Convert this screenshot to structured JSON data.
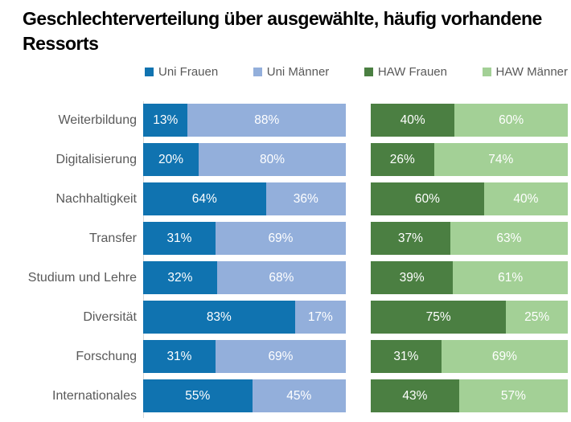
{
  "title": "Geschlechterverteilung über ausgewählte, häufig vorhandene Ressorts",
  "colors": {
    "uni_frauen": "#1073b0",
    "uni_maenner": "#93afdb",
    "haw_frauen": "#4b7f42",
    "haw_maenner": "#a3d096",
    "label_gray": "#595959",
    "axis_line": "#d9d9d9",
    "value_text": "#ffffff"
  },
  "chart_data": {
    "type": "bar",
    "variant": "horizontal-stacked-100-percent",
    "title": "Geschlechterverteilung über ausgewählte, häufig vorhandene Ressorts",
    "legend_position": "top",
    "grid": false,
    "value_suffix": "%",
    "categories": [
      "Weiterbildung",
      "Digitalisierung",
      "Nachhaltigkeit",
      "Transfer",
      "Studium und Lehre",
      "Diversität",
      "Forschung",
      "Internationales"
    ],
    "series": [
      {
        "name": "Uni Frauen",
        "color": "#1073b0",
        "values": [
          13,
          20,
          64,
          31,
          32,
          83,
          31,
          55
        ]
      },
      {
        "name": "Uni Männer",
        "color": "#93afdb",
        "values": [
          88,
          80,
          36,
          69,
          68,
          17,
          69,
          45
        ]
      },
      {
        "name": "HAW Frauen",
        "color": "#4b7f42",
        "values": [
          40,
          26,
          60,
          37,
          39,
          75,
          31,
          43
        ]
      },
      {
        "name": "HAW Männer",
        "color": "#a3d096",
        "values": [
          60,
          74,
          40,
          63,
          61,
          25,
          69,
          57
        ]
      }
    ],
    "panels": [
      {
        "name": "Uni",
        "series_indexes": [
          0,
          1
        ]
      },
      {
        "name": "HAW",
        "series_indexes": [
          2,
          3
        ]
      }
    ]
  }
}
